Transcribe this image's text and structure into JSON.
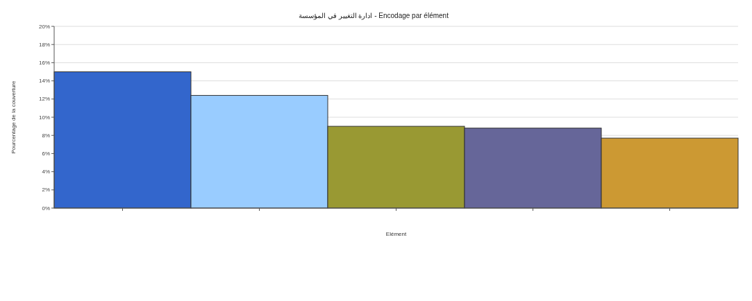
{
  "chart_data": {
    "type": "bar",
    "title": "ادارة التغيير في المؤسسة - Encodage par élément",
    "xlabel": "Elément",
    "ylabel": "Pourcentage de la couverture",
    "categories": [
      null,
      null,
      null,
      null,
      null
    ],
    "values": [
      15,
      12.4,
      9,
      8.8,
      7.7
    ],
    "colors": [
      "#3366cc",
      "#99ccff",
      "#999933",
      "#666699",
      "#cc9933"
    ],
    "ylim": [
      0,
      20
    ],
    "yticks": [
      {
        "value": 0,
        "label": "0%"
      },
      {
        "value": 2,
        "label": "2%"
      },
      {
        "value": 4,
        "label": "4%"
      },
      {
        "value": 6,
        "label": "6%"
      },
      {
        "value": 8,
        "label": "8%"
      },
      {
        "value": 10,
        "label": "10%"
      },
      {
        "value": 12,
        "label": "12%"
      },
      {
        "value": 14,
        "label": "14%"
      },
      {
        "value": 16,
        "label": "16%"
      },
      {
        "value": 18,
        "label": "18%"
      },
      {
        "value": 20,
        "label": "20%"
      }
    ],
    "grid": "y"
  }
}
